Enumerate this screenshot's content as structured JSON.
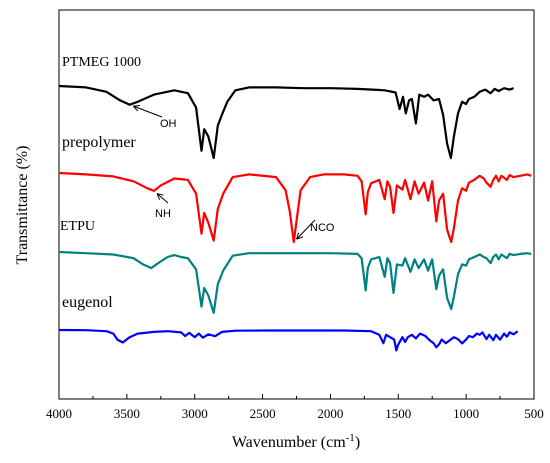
{
  "chart_data": {
    "type": "line",
    "xlabel": "Wavenumber (cm",
    "xlabel_sup": "-1",
    "xlabel_end": ")",
    "ylabel": "Transmittance (%)",
    "xlim": [
      4000,
      500
    ],
    "x_reversed": true,
    "yticks_visible": false,
    "xticks": [
      "4000",
      "3500",
      "3000",
      "2500",
      "2000",
      "1500",
      "1000",
      "500"
    ],
    "series": [
      {
        "name": "PTMEG 1000",
        "color": "#000000",
        "label_size": 14,
        "points": [
          [
            4000,
            0
          ],
          [
            3800,
            0.02
          ],
          [
            3650,
            0.08
          ],
          [
            3550,
            0.2
          ],
          [
            3480,
            0.26
          ],
          [
            3420,
            0.22
          ],
          [
            3300,
            0.12
          ],
          [
            3150,
            0.06
          ],
          [
            3050,
            0.1
          ],
          [
            2990,
            0.3
          ],
          [
            2950,
            0.9
          ],
          [
            2930,
            0.6
          ],
          [
            2900,
            0.7
          ],
          [
            2860,
            1.0
          ],
          [
            2830,
            0.55
          ],
          [
            2800,
            0.4
          ],
          [
            2760,
            0.22
          ],
          [
            2700,
            0.06
          ],
          [
            2600,
            0.02
          ],
          [
            2400,
            0.02
          ],
          [
            2200,
            0.03
          ],
          [
            2000,
            0.03
          ],
          [
            1800,
            0.04
          ],
          [
            1600,
            0.06
          ],
          [
            1520,
            0.09
          ],
          [
            1490,
            0.32
          ],
          [
            1465,
            0.15
          ],
          [
            1445,
            0.38
          ],
          [
            1420,
            0.2
          ],
          [
            1400,
            0.18
          ],
          [
            1370,
            0.52
          ],
          [
            1345,
            0.12
          ],
          [
            1310,
            0.15
          ],
          [
            1280,
            0.12
          ],
          [
            1240,
            0.2
          ],
          [
            1200,
            0.18
          ],
          [
            1170,
            0.4
          ],
          [
            1140,
            0.8
          ],
          [
            1112,
            1.0
          ],
          [
            1090,
            0.7
          ],
          [
            1060,
            0.38
          ],
          [
            1030,
            0.22
          ],
          [
            1000,
            0.25
          ],
          [
            980,
            0.18
          ],
          [
            940,
            0.15
          ],
          [
            900,
            0.08
          ],
          [
            860,
            0.05
          ],
          [
            820,
            0.1
          ],
          [
            790,
            0.04
          ],
          [
            760,
            0.07
          ],
          [
            720,
            0.03
          ],
          [
            680,
            0.05
          ],
          [
            650,
            0.03
          ],
          [
            600,
            0.05
          ]
        ]
      },
      {
        "name": "prepolymer",
        "color": "#ff0000",
        "label_size": 16,
        "points": [
          [
            4000,
            0
          ],
          [
            3800,
            0.02
          ],
          [
            3600,
            0.05
          ],
          [
            3450,
            0.12
          ],
          [
            3350,
            0.22
          ],
          [
            3300,
            0.26
          ],
          [
            3250,
            0.18
          ],
          [
            3150,
            0.08
          ],
          [
            3050,
            0.1
          ],
          [
            2990,
            0.3
          ],
          [
            2950,
            0.88
          ],
          [
            2930,
            0.58
          ],
          [
            2900,
            0.72
          ],
          [
            2860,
            0.98
          ],
          [
            2830,
            0.52
          ],
          [
            2790,
            0.3
          ],
          [
            2720,
            0.06
          ],
          [
            2600,
            0.02
          ],
          [
            2400,
            0.06
          ],
          [
            2330,
            0.25
          ],
          [
            2300,
            0.55
          ],
          [
            2270,
            1.0
          ],
          [
            2250,
            0.7
          ],
          [
            2220,
            0.25
          ],
          [
            2150,
            0.06
          ],
          [
            2050,
            0.02
          ],
          [
            1900,
            0.02
          ],
          [
            1800,
            0.04
          ],
          [
            1770,
            0.12
          ],
          [
            1740,
            0.6
          ],
          [
            1725,
            0.28
          ],
          [
            1700,
            0.15
          ],
          [
            1640,
            0.1
          ],
          [
            1600,
            0.38
          ],
          [
            1580,
            0.12
          ],
          [
            1560,
            0.2
          ],
          [
            1535,
            0.58
          ],
          [
            1510,
            0.18
          ],
          [
            1470,
            0.24
          ],
          [
            1450,
            0.1
          ],
          [
            1410,
            0.38
          ],
          [
            1380,
            0.12
          ],
          [
            1350,
            0.3
          ],
          [
            1310,
            0.14
          ],
          [
            1280,
            0.4
          ],
          [
            1250,
            0.12
          ],
          [
            1220,
            0.7
          ],
          [
            1200,
            0.4
          ],
          [
            1170,
            0.3
          ],
          [
            1140,
            0.82
          ],
          [
            1110,
            1.0
          ],
          [
            1090,
            0.8
          ],
          [
            1060,
            0.4
          ],
          [
            1030,
            0.22
          ],
          [
            1000,
            0.26
          ],
          [
            980,
            0.14
          ],
          [
            940,
            0.1
          ],
          [
            900,
            0.04
          ],
          [
            870,
            0.08
          ],
          [
            850,
            0.14
          ],
          [
            820,
            0.2
          ],
          [
            800,
            0.1
          ],
          [
            780,
            0.04
          ],
          [
            760,
            0.12
          ],
          [
            740,
            0.04
          ],
          [
            700,
            0.1
          ],
          [
            680,
            0.03
          ],
          [
            650,
            0.06
          ],
          [
            600,
            0.04
          ],
          [
            550,
            0.02
          ],
          [
            520,
            0.04
          ]
        ]
      },
      {
        "name": "ETPU",
        "color": "#008080",
        "label_size": 14,
        "points": [
          [
            4000,
            0
          ],
          [
            3800,
            0.02
          ],
          [
            3600,
            0.04
          ],
          [
            3450,
            0.1
          ],
          [
            3380,
            0.2
          ],
          [
            3320,
            0.26
          ],
          [
            3270,
            0.18
          ],
          [
            3200,
            0.08
          ],
          [
            3150,
            0.05
          ],
          [
            3100,
            0.08
          ],
          [
            3050,
            0.1
          ],
          [
            2990,
            0.28
          ],
          [
            2950,
            0.88
          ],
          [
            2930,
            0.58
          ],
          [
            2900,
            0.7
          ],
          [
            2860,
            0.98
          ],
          [
            2830,
            0.52
          ],
          [
            2790,
            0.3
          ],
          [
            2720,
            0.06
          ],
          [
            2600,
            0.02
          ],
          [
            2400,
            0.02
          ],
          [
            2200,
            0.02
          ],
          [
            2000,
            0.02
          ],
          [
            1800,
            0.03
          ],
          [
            1770,
            0.1
          ],
          [
            1740,
            0.62
          ],
          [
            1725,
            0.26
          ],
          [
            1700,
            0.12
          ],
          [
            1640,
            0.08
          ],
          [
            1600,
            0.4
          ],
          [
            1580,
            0.1
          ],
          [
            1560,
            0.18
          ],
          [
            1535,
            0.66
          ],
          [
            1510,
            0.2
          ],
          [
            1470,
            0.22
          ],
          [
            1450,
            0.1
          ],
          [
            1410,
            0.32
          ],
          [
            1380,
            0.12
          ],
          [
            1350,
            0.26
          ],
          [
            1310,
            0.12
          ],
          [
            1280,
            0.3
          ],
          [
            1250,
            0.12
          ],
          [
            1220,
            0.6
          ],
          [
            1200,
            0.38
          ],
          [
            1170,
            0.28
          ],
          [
            1140,
            0.74
          ],
          [
            1110,
            0.92
          ],
          [
            1090,
            0.72
          ],
          [
            1060,
            0.36
          ],
          [
            1030,
            0.2
          ],
          [
            1000,
            0.22
          ],
          [
            980,
            0.12
          ],
          [
            940,
            0.08
          ],
          [
            900,
            0.04
          ],
          [
            870,
            0.08
          ],
          [
            850,
            0.1
          ],
          [
            820,
            0.18
          ],
          [
            800,
            0.08
          ],
          [
            780,
            0.04
          ],
          [
            760,
            0.12
          ],
          [
            740,
            0.04
          ],
          [
            700,
            0.1
          ],
          [
            680,
            0.03
          ],
          [
            650,
            0.05
          ],
          [
            600,
            0.03
          ],
          [
            550,
            0.02
          ],
          [
            520,
            0.03
          ]
        ]
      },
      {
        "name": "eugenol",
        "color": "#0000ff",
        "label_size": 16,
        "points": [
          [
            4000,
            0
          ],
          [
            3800,
            0.01
          ],
          [
            3650,
            0.05
          ],
          [
            3600,
            0.15
          ],
          [
            3570,
            0.4
          ],
          [
            3530,
            0.52
          ],
          [
            3480,
            0.3
          ],
          [
            3420,
            0.15
          ],
          [
            3300,
            0.08
          ],
          [
            3200,
            0.05
          ],
          [
            3100,
            0.1
          ],
          [
            3070,
            0.25
          ],
          [
            3040,
            0.12
          ],
          [
            3000,
            0.3
          ],
          [
            2970,
            0.15
          ],
          [
            2940,
            0.32
          ],
          [
            2900,
            0.18
          ],
          [
            2850,
            0.26
          ],
          [
            2800,
            0.08
          ],
          [
            2700,
            0.03
          ],
          [
            2500,
            0.02
          ],
          [
            2300,
            0.02
          ],
          [
            2100,
            0.02
          ],
          [
            1900,
            0.02
          ],
          [
            1700,
            0.05
          ],
          [
            1640,
            0.2
          ],
          [
            1610,
            0.55
          ],
          [
            1590,
            0.2
          ],
          [
            1560,
            0.3
          ],
          [
            1530,
            0.4
          ],
          [
            1515,
            0.85
          ],
          [
            1500,
            0.6
          ],
          [
            1470,
            0.3
          ],
          [
            1450,
            0.5
          ],
          [
            1430,
            0.3
          ],
          [
            1400,
            0.2
          ],
          [
            1370,
            0.35
          ],
          [
            1340,
            0.15
          ],
          [
            1300,
            0.25
          ],
          [
            1270,
            0.42
          ],
          [
            1240,
            0.55
          ],
          [
            1220,
            0.72
          ],
          [
            1200,
            0.6
          ],
          [
            1180,
            0.4
          ],
          [
            1150,
            0.55
          ],
          [
            1120,
            0.42
          ],
          [
            1090,
            0.3
          ],
          [
            1060,
            0.38
          ],
          [
            1030,
            0.56
          ],
          [
            1000,
            0.4
          ],
          [
            980,
            0.25
          ],
          [
            950,
            0.3
          ],
          [
            920,
            0.15
          ],
          [
            900,
            0.2
          ],
          [
            880,
            0.1
          ],
          [
            850,
            0.38
          ],
          [
            830,
            0.2
          ],
          [
            800,
            0.42
          ],
          [
            780,
            0.2
          ],
          [
            750,
            0.4
          ],
          [
            720,
            0.15
          ],
          [
            700,
            0.28
          ],
          [
            680,
            0.1
          ],
          [
            650,
            0.18
          ],
          [
            620,
            0.05
          ],
          [
            600,
            0.12
          ],
          [
            580,
            0.05
          ],
          [
            560,
            0.1
          ]
        ]
      }
    ],
    "annotations": [
      {
        "text": "OH",
        "series": "PTMEG 1000",
        "x": 3480
      },
      {
        "text": "NH",
        "series": "prepolymer",
        "x": 3300
      },
      {
        "text": "NCO",
        "series": "prepolymer",
        "x": 2270
      }
    ]
  }
}
